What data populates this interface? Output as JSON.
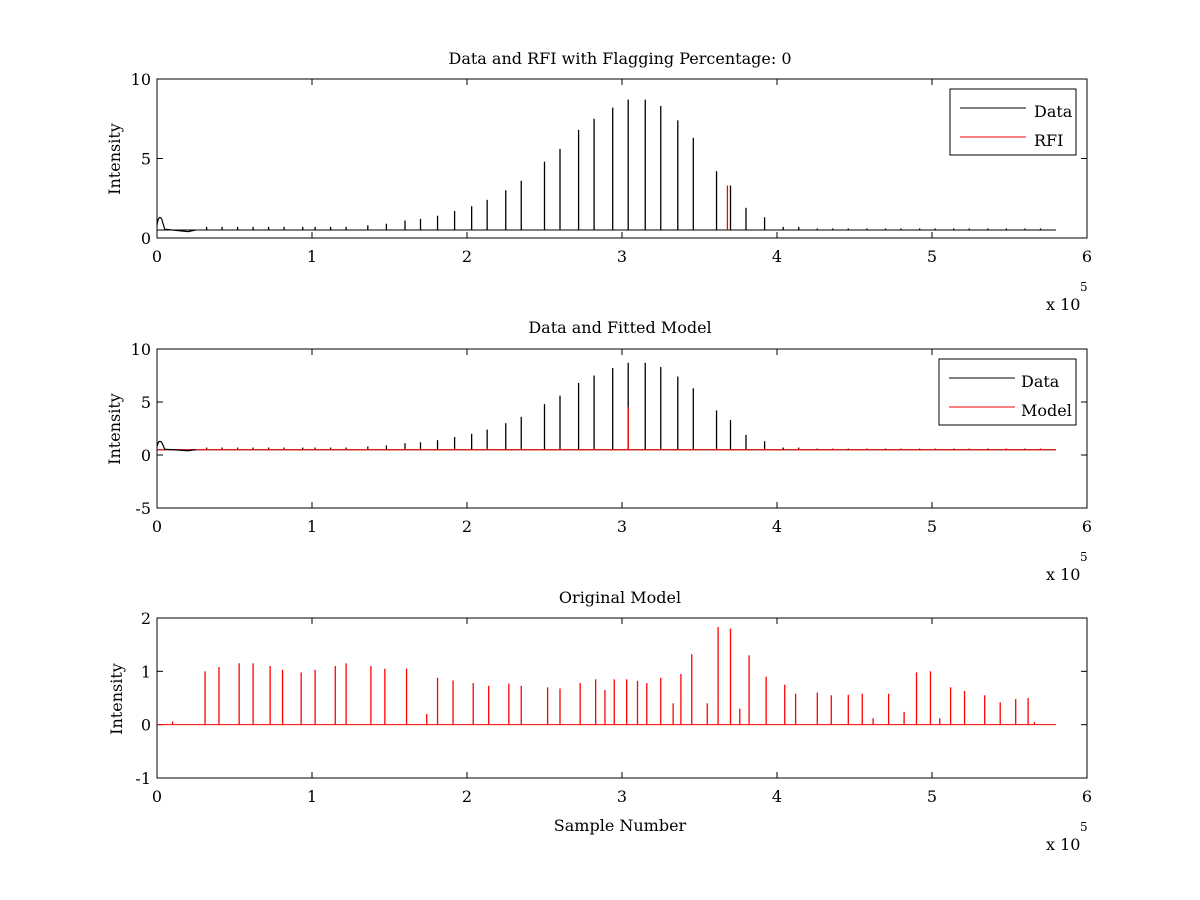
{
  "chart_data": [
    {
      "type": "line",
      "title": "Data and RFI with Flagging Percentage: 0",
      "xlabel": "",
      "ylabel": "Intensity",
      "xlim": [
        0,
        6
      ],
      "ylim": [
        0,
        10
      ],
      "xticks": [
        0,
        1,
        2,
        3,
        4,
        5,
        6
      ],
      "yticks": [
        0,
        5,
        10
      ],
      "x_multiplier_label": "x 10",
      "x_multiplier_exponent": "5",
      "x_data_range": [
        0,
        5.8
      ],
      "baseline": 0.5,
      "legend_position": "top-right",
      "series": [
        {
          "name": "Data",
          "color": "#000000",
          "peaks": [
            [
              0.32,
              0.7
            ],
            [
              0.42,
              0.7
            ],
            [
              0.52,
              0.7
            ],
            [
              0.62,
              0.7
            ],
            [
              0.72,
              0.7
            ],
            [
              0.82,
              0.7
            ],
            [
              0.94,
              0.7
            ],
            [
              1.02,
              0.7
            ],
            [
              1.12,
              0.7
            ],
            [
              1.22,
              0.7
            ],
            [
              1.36,
              0.8
            ],
            [
              1.48,
              0.9
            ],
            [
              1.6,
              1.1
            ],
            [
              1.7,
              1.2
            ],
            [
              1.81,
              1.4
            ],
            [
              1.92,
              1.7
            ],
            [
              2.03,
              2.0
            ],
            [
              2.13,
              2.4
            ],
            [
              2.25,
              3.0
            ],
            [
              2.35,
              3.6
            ],
            [
              2.5,
              4.8
            ],
            [
              2.6,
              5.6
            ],
            [
              2.72,
              6.8
            ],
            [
              2.82,
              7.5
            ],
            [
              2.94,
              8.2
            ],
            [
              3.04,
              8.7
            ],
            [
              3.15,
              8.7
            ],
            [
              3.25,
              8.3
            ],
            [
              3.36,
              7.4
            ],
            [
              3.46,
              6.3
            ],
            [
              3.61,
              4.2
            ],
            [
              3.7,
              3.3
            ],
            [
              3.8,
              1.9
            ],
            [
              3.92,
              1.3
            ],
            [
              4.04,
              0.7
            ],
            [
              4.14,
              0.7
            ],
            [
              4.26,
              0.6
            ],
            [
              4.36,
              0.6
            ],
            [
              4.46,
              0.6
            ],
            [
              4.58,
              0.6
            ],
            [
              4.7,
              0.6
            ],
            [
              4.8,
              0.6
            ],
            [
              4.92,
              0.6
            ],
            [
              5.02,
              0.6
            ],
            [
              5.14,
              0.6
            ],
            [
              5.24,
              0.6
            ],
            [
              5.36,
              0.6
            ],
            [
              5.48,
              0.6
            ],
            [
              5.6,
              0.6
            ],
            [
              5.7,
              0.6
            ]
          ]
        },
        {
          "name": "RFI",
          "color": "#ff0000",
          "peaks": [
            [
              3.68,
              3.3
            ]
          ]
        }
      ]
    },
    {
      "type": "line",
      "title": "Data and Fitted Model",
      "xlabel": "",
      "ylabel": "Intensity",
      "xlim": [
        0,
        6
      ],
      "ylim": [
        -5,
        10
      ],
      "xticks": [
        0,
        1,
        2,
        3,
        4,
        5,
        6
      ],
      "yticks": [
        -5,
        0,
        5,
        10
      ],
      "x_multiplier_label": "x 10",
      "x_multiplier_exponent": "5",
      "x_data_range": [
        0,
        5.8
      ],
      "baseline": 0.5,
      "legend_position": "top-right",
      "series": [
        {
          "name": "Data",
          "color": "#000000",
          "peaks": [
            [
              0.32,
              0.7
            ],
            [
              0.42,
              0.7
            ],
            [
              0.52,
              0.7
            ],
            [
              0.62,
              0.7
            ],
            [
              0.72,
              0.7
            ],
            [
              0.82,
              0.7
            ],
            [
              0.94,
              0.7
            ],
            [
              1.02,
              0.7
            ],
            [
              1.12,
              0.7
            ],
            [
              1.22,
              0.7
            ],
            [
              1.36,
              0.8
            ],
            [
              1.48,
              0.9
            ],
            [
              1.6,
              1.1
            ],
            [
              1.7,
              1.2
            ],
            [
              1.81,
              1.4
            ],
            [
              1.92,
              1.7
            ],
            [
              2.03,
              2.0
            ],
            [
              2.13,
              2.4
            ],
            [
              2.25,
              3.0
            ],
            [
              2.35,
              3.6
            ],
            [
              2.5,
              4.8
            ],
            [
              2.6,
              5.6
            ],
            [
              2.72,
              6.8
            ],
            [
              2.82,
              7.5
            ],
            [
              2.94,
              8.2
            ],
            [
              3.04,
              8.7
            ],
            [
              3.15,
              8.7
            ],
            [
              3.25,
              8.3
            ],
            [
              3.36,
              7.4
            ],
            [
              3.46,
              6.3
            ],
            [
              3.61,
              4.2
            ],
            [
              3.7,
              3.3
            ],
            [
              3.8,
              1.9
            ],
            [
              3.92,
              1.3
            ],
            [
              4.04,
              0.7
            ],
            [
              4.14,
              0.7
            ],
            [
              4.26,
              0.6
            ],
            [
              4.36,
              0.6
            ],
            [
              4.46,
              0.6
            ],
            [
              4.58,
              0.6
            ],
            [
              4.7,
              0.6
            ],
            [
              4.8,
              0.6
            ],
            [
              4.92,
              0.6
            ],
            [
              5.02,
              0.6
            ],
            [
              5.14,
              0.6
            ],
            [
              5.24,
              0.6
            ],
            [
              5.36,
              0.6
            ],
            [
              5.48,
              0.6
            ],
            [
              5.6,
              0.6
            ],
            [
              5.7,
              0.6
            ]
          ]
        },
        {
          "name": "Model",
          "color": "#ff0000",
          "peaks": [
            [
              0.32,
              0.6
            ],
            [
              0.42,
              0.6
            ],
            [
              0.52,
              0.6
            ],
            [
              0.62,
              0.6
            ],
            [
              0.72,
              0.6
            ],
            [
              0.82,
              0.6
            ],
            [
              1.02,
              0.6
            ],
            [
              1.12,
              0.6
            ],
            [
              1.22,
              0.6
            ],
            [
              1.36,
              0.6
            ],
            [
              1.6,
              0.6
            ],
            [
              1.7,
              0.6
            ],
            [
              1.92,
              0.6
            ],
            [
              2.13,
              0.6
            ],
            [
              2.35,
              0.6
            ],
            [
              2.6,
              0.6
            ],
            [
              2.82,
              0.6
            ],
            [
              3.04,
              4.5
            ],
            [
              3.25,
              0.6
            ],
            [
              3.46,
              0.6
            ],
            [
              3.61,
              0.6
            ],
            [
              3.92,
              0.6
            ],
            [
              4.14,
              0.6
            ],
            [
              4.36,
              0.6
            ],
            [
              4.58,
              0.6
            ],
            [
              4.8,
              0.6
            ],
            [
              5.02,
              0.6
            ],
            [
              5.24,
              0.6
            ],
            [
              5.48,
              0.6
            ],
            [
              5.7,
              0.6
            ]
          ]
        }
      ]
    },
    {
      "type": "line",
      "title": "Original Model",
      "xlabel": "Sample Number",
      "ylabel": "Intensity",
      "xlim": [
        0,
        6
      ],
      "ylim": [
        -1,
        2
      ],
      "xticks": [
        0,
        1,
        2,
        3,
        4,
        5,
        6
      ],
      "yticks": [
        -1,
        0,
        1,
        2
      ],
      "x_multiplier_label": "x 10",
      "x_multiplier_exponent": "5",
      "x_data_range": [
        0,
        5.8
      ],
      "baseline": 0,
      "legend_position": "none",
      "series": [
        {
          "name": "",
          "color": "#ff0000",
          "peaks": [
            [
              0.1,
              0.06
            ],
            [
              0.31,
              1.0
            ],
            [
              0.4,
              1.08
            ],
            [
              0.53,
              1.15
            ],
            [
              0.62,
              1.15
            ],
            [
              0.73,
              1.1
            ],
            [
              0.81,
              1.03
            ],
            [
              0.93,
              0.98
            ],
            [
              1.02,
              1.03
            ],
            [
              1.15,
              1.1
            ],
            [
              1.22,
              1.15
            ],
            [
              1.38,
              1.1
            ],
            [
              1.47,
              1.05
            ],
            [
              1.61,
              1.05
            ],
            [
              1.74,
              0.2
            ],
            [
              1.81,
              0.88
            ],
            [
              1.91,
              0.83
            ],
            [
              2.04,
              0.78
            ],
            [
              2.14,
              0.73
            ],
            [
              2.27,
              0.77
            ],
            [
              2.35,
              0.73
            ],
            [
              2.52,
              0.7
            ],
            [
              2.6,
              0.68
            ],
            [
              2.73,
              0.78
            ],
            [
              2.83,
              0.85
            ],
            [
              2.89,
              0.65
            ],
            [
              2.95,
              0.85
            ],
            [
              3.03,
              0.85
            ],
            [
              3.1,
              0.82
            ],
            [
              3.16,
              0.78
            ],
            [
              3.25,
              0.88
            ],
            [
              3.33,
              0.4
            ],
            [
              3.38,
              0.95
            ],
            [
              3.45,
              1.32
            ],
            [
              3.55,
              0.4
            ],
            [
              3.62,
              1.83
            ],
            [
              3.7,
              1.8
            ],
            [
              3.76,
              0.3
            ],
            [
              3.82,
              1.3
            ],
            [
              3.93,
              0.9
            ],
            [
              4.05,
              0.75
            ],
            [
              4.12,
              0.58
            ],
            [
              4.26,
              0.6
            ],
            [
              4.35,
              0.55
            ],
            [
              4.46,
              0.56
            ],
            [
              4.55,
              0.58
            ],
            [
              4.62,
              0.12
            ],
            [
              4.72,
              0.58
            ],
            [
              4.82,
              0.24
            ],
            [
              4.9,
              0.98
            ],
            [
              4.99,
              1.0
            ],
            [
              5.05,
              0.12
            ],
            [
              5.12,
              0.7
            ],
            [
              5.21,
              0.63
            ],
            [
              5.34,
              0.55
            ],
            [
              5.44,
              0.42
            ],
            [
              5.54,
              0.48
            ],
            [
              5.62,
              0.5
            ],
            [
              5.66,
              0.05
            ]
          ]
        }
      ]
    }
  ]
}
